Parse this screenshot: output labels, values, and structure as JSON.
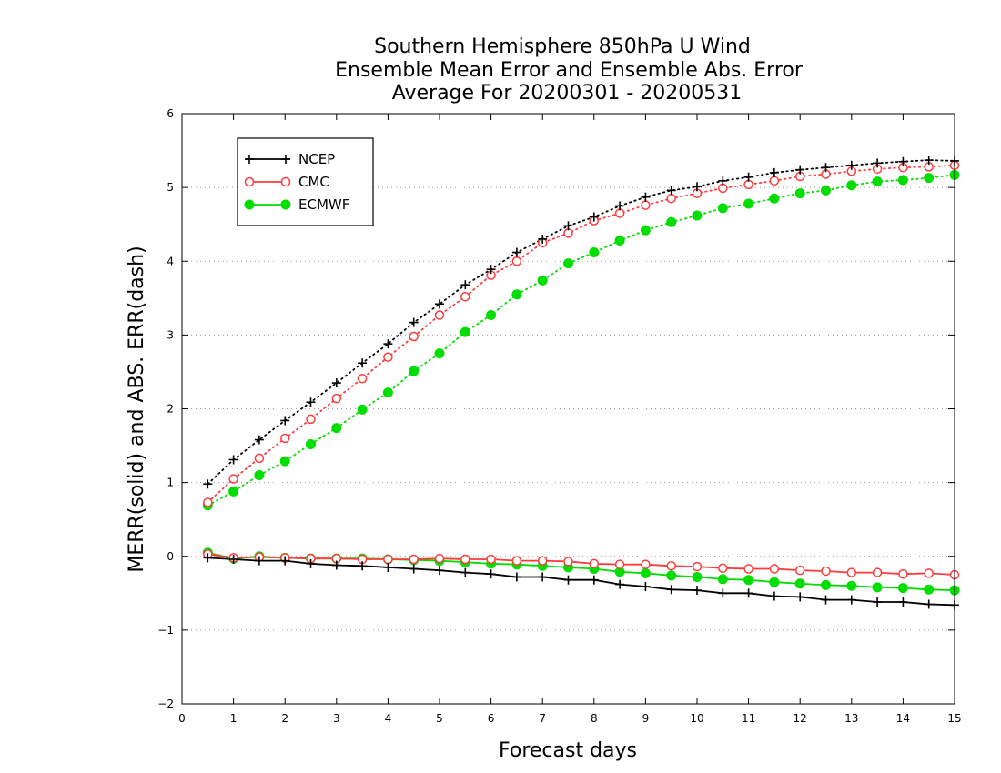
{
  "chart_data": {
    "type": "line",
    "title_lines": [
      "Southern Hemisphere 850hPa U Wind",
      "Ensemble Mean Error and Ensemble Abs. Error",
      "Average For 20200301 - 20200531"
    ],
    "xlabel": "Forecast days",
    "ylabel": "MERR(solid) and ABS. ERR(dash)",
    "xlim": [
      0,
      15
    ],
    "ylim": [
      -2,
      6
    ],
    "xticks": [
      "0",
      "1",
      "2",
      "3",
      "4",
      "5",
      "6",
      "7",
      "8",
      "9",
      "10",
      "11",
      "12",
      "13",
      "14",
      "15"
    ],
    "yticks": [
      "−2",
      "−1",
      "0",
      "1",
      "2",
      "3",
      "4",
      "5",
      "6"
    ],
    "grid": "horizontal dotted",
    "legend_position": "top-left",
    "x": [
      0.5,
      1,
      1.5,
      2,
      2.5,
      3,
      3.5,
      4,
      4.5,
      5,
      5.5,
      6,
      6.5,
      7,
      7.5,
      8,
      8.5,
      9,
      9.5,
      10,
      10.5,
      11,
      11.5,
      12,
      12.5,
      13,
      13.5,
      14,
      14.5,
      15
    ],
    "series": [
      {
        "name": "NCEP",
        "color": "#000000",
        "marker": "plus",
        "abs_err": [
          0.98,
          1.31,
          1.58,
          1.84,
          2.09,
          2.35,
          2.62,
          2.88,
          3.17,
          3.42,
          3.68,
          3.89,
          4.12,
          4.3,
          4.48,
          4.6,
          4.75,
          4.87,
          4.96,
          5.01,
          5.09,
          5.14,
          5.2,
          5.24,
          5.27,
          5.3,
          5.33,
          5.35,
          5.37,
          5.36
        ],
        "mean_err": [
          -0.02,
          -0.04,
          -0.06,
          -0.06,
          -0.1,
          -0.12,
          -0.13,
          -0.15,
          -0.17,
          -0.19,
          -0.22,
          -0.24,
          -0.28,
          -0.28,
          -0.32,
          -0.32,
          -0.38,
          -0.41,
          -0.45,
          -0.46,
          -0.5,
          -0.5,
          -0.54,
          -0.55,
          -0.59,
          -0.59,
          -0.62,
          -0.62,
          -0.65,
          -0.66
        ]
      },
      {
        "name": "CMC",
        "color": "#ff3b3b",
        "marker": "open-circle",
        "abs_err": [
          0.73,
          1.05,
          1.33,
          1.6,
          1.86,
          2.14,
          2.41,
          2.7,
          2.98,
          3.27,
          3.52,
          3.81,
          4.0,
          4.25,
          4.38,
          4.55,
          4.65,
          4.76,
          4.85,
          4.92,
          4.99,
          5.04,
          5.09,
          5.15,
          5.18,
          5.22,
          5.25,
          5.27,
          5.28,
          5.3
        ],
        "mean_err": [
          0.03,
          -0.02,
          -0.01,
          -0.02,
          -0.03,
          -0.03,
          -0.04,
          -0.04,
          -0.04,
          -0.03,
          -0.04,
          -0.04,
          -0.06,
          -0.06,
          -0.07,
          -0.1,
          -0.11,
          -0.11,
          -0.13,
          -0.14,
          -0.16,
          -0.17,
          -0.17,
          -0.19,
          -0.2,
          -0.22,
          -0.22,
          -0.24,
          -0.23,
          -0.25
        ]
      },
      {
        "name": "ECMWF",
        "color": "#00dd00",
        "marker": "filled-circle",
        "abs_err": [
          0.69,
          0.88,
          1.1,
          1.29,
          1.52,
          1.74,
          1.99,
          2.22,
          2.51,
          2.75,
          3.04,
          3.27,
          3.55,
          3.74,
          3.97,
          4.12,
          4.28,
          4.42,
          4.53,
          4.62,
          4.72,
          4.78,
          4.85,
          4.92,
          4.96,
          5.03,
          5.08,
          5.1,
          5.13,
          5.17
        ],
        "mean_err": [
          0.05,
          -0.03,
          0.0,
          -0.02,
          -0.03,
          -0.03,
          -0.03,
          -0.04,
          -0.05,
          -0.06,
          -0.08,
          -0.1,
          -0.11,
          -0.13,
          -0.15,
          -0.17,
          -0.21,
          -0.23,
          -0.26,
          -0.28,
          -0.31,
          -0.32,
          -0.35,
          -0.37,
          -0.39,
          -0.4,
          -0.42,
          -0.43,
          -0.45,
          -0.46
        ]
      }
    ]
  }
}
